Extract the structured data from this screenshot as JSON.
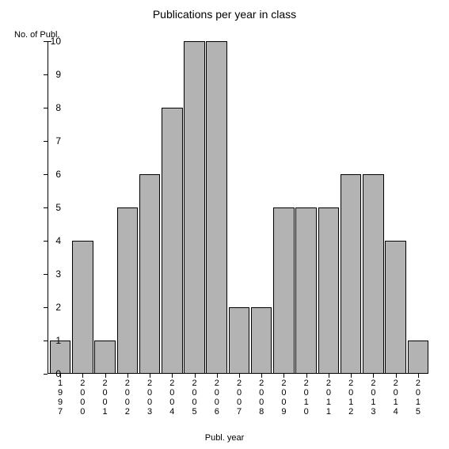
{
  "chart": {
    "type": "bar",
    "title": "Publications per year in class",
    "title_fontsize": 14,
    "xlabel": "Publ. year",
    "ylabel": "No. of Publ.",
    "label_fontsize": 11,
    "background_color": "#ffffff",
    "bar_color": "#b3b3b3",
    "bar_border_color": "#000000",
    "axis_color": "#000000",
    "text_color": "#000000",
    "ylim": [
      0,
      10
    ],
    "ytick_step": 1,
    "yticks": [
      0,
      1,
      2,
      3,
      4,
      5,
      6,
      7,
      8,
      9,
      10
    ],
    "categories": [
      "1997",
      "2000",
      "2001",
      "2002",
      "2003",
      "2004",
      "2005",
      "2006",
      "2007",
      "2008",
      "2009",
      "2010",
      "2011",
      "2012",
      "2013",
      "2014",
      "2015"
    ],
    "values": [
      1,
      4,
      1,
      5,
      6,
      8,
      10,
      10,
      2,
      2,
      5,
      5,
      5,
      6,
      6,
      4,
      1
    ],
    "bar_width_rel": 0.94,
    "font_family": "Arial"
  }
}
